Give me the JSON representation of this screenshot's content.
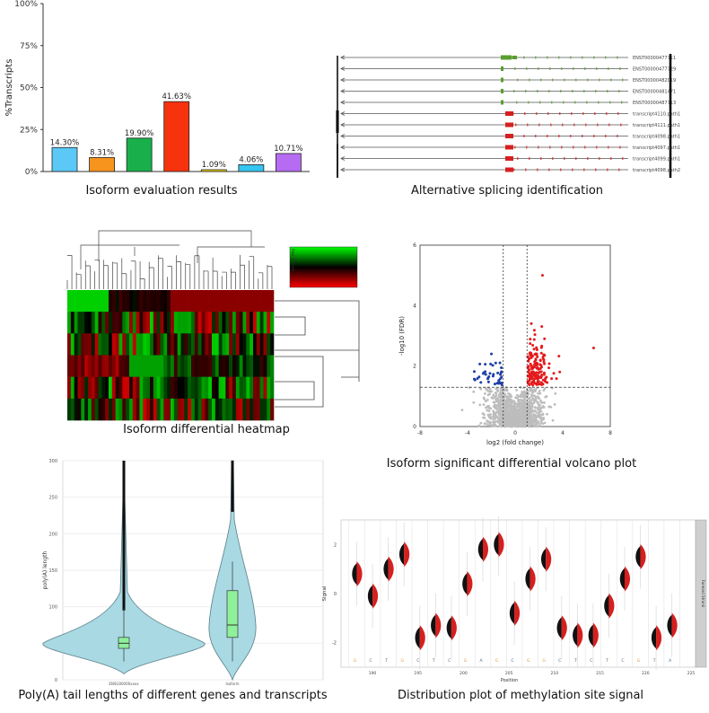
{
  "captions": {
    "p1": "Isoform evaluation results",
    "p2": "Alternative splicing identification",
    "p3": "Isoform differential heatmap",
    "p4": "Isoform significant differential volcano plot",
    "p5": "Poly(A) tail lengths of different genes and transcripts",
    "p6": "Distribution plot of methylation site signal"
  },
  "chart_data": [
    {
      "type": "bar",
      "ylabel": "%Transcripts",
      "ylim": [
        0,
        100
      ],
      "yticks": [
        "0%",
        "25%",
        "50%",
        "75%",
        "100%"
      ],
      "values": [
        14.3,
        8.31,
        19.9,
        41.63,
        1.09,
        4.06,
        10.71
      ],
      "labels": [
        "14.30%",
        "8.31%",
        "19.90%",
        "41.63%",
        "1.09%",
        "4.06%",
        "10.71%"
      ],
      "colors": [
        "#5bc8f5",
        "#f7941d",
        "#19b04b",
        "#f7330e",
        "#f5d90a",
        "#34c6f0",
        "#b66cf2"
      ],
      "grid": false
    },
    {
      "type": "other",
      "kind": "transcript-structure",
      "track_labels": [
        "ENST00000477711",
        "ENST00000477729",
        "ENST00000482019",
        "ENST00000481471",
        "ENST00000487713",
        "transcript4110.path1",
        "transcript4111.path1",
        "transcript4098.path1",
        "transcript4097.path1",
        "transcript4099.path1",
        "transcript4098.path2"
      ],
      "track_colors": [
        "#5a9e2f",
        "#5a9e2f",
        "#5a9e2f",
        "#5a9e2f",
        "#5a9e2f",
        "#d61f1f",
        "#d61f1f",
        "#d61f1f",
        "#d61f1f",
        "#d61f1f",
        "#d61f1f"
      ]
    },
    {
      "type": "heatmap",
      "legend_title": "Row Z-Score",
      "legend_ticks": [
        "-3",
        "-2",
        "-1",
        "0",
        "1",
        "2",
        "3"
      ],
      "rows": 6,
      "palette": [
        "#ff0000",
        "#000000",
        "#00ff00"
      ]
    },
    {
      "type": "scatter",
      "xlabel": "log2 (fold change)",
      "ylabel": "-log10 (FDR)",
      "xlim": [
        -8,
        8
      ],
      "ylim": [
        0,
        6
      ],
      "xticks": [
        "-8",
        "-4",
        "0",
        "4",
        "8"
      ],
      "yticks": [
        "0",
        "2",
        "4",
        "6"
      ],
      "thresholds": {
        "log2fc": [
          -1,
          1
        ],
        "neg_log10_fdr": 1.3
      },
      "colors": {
        "up": "#e31a1c",
        "down": "#1f3fa8",
        "ns": "#bdbdbd"
      }
    },
    {
      "type": "violin",
      "ylabel": "poly(A) length",
      "ylim": [
        0,
        300
      ],
      "yticks": [
        "0",
        "50",
        "100",
        "150",
        "200",
        "250",
        "300"
      ],
      "categories": [
        "ENSG00000xxxx",
        "Isoform"
      ],
      "medians": [
        50,
        75
      ],
      "q1": [
        43,
        58
      ],
      "q3": [
        58,
        122
      ],
      "fill": "#a9d9e3",
      "box_fill": "#8ef09a"
    },
    {
      "type": "violin",
      "xlabel": "Position",
      "ylabel": "Signal",
      "ylim": [
        -3,
        3
      ],
      "yticks": [
        "-2",
        "0",
        "2"
      ],
      "xticks": [
        "190",
        "195",
        "200",
        "205",
        "210",
        "215",
        "220",
        "225"
      ],
      "strip_label": "Forward Strand",
      "signal_means": [
        0.8,
        -0.1,
        1.0,
        1.6,
        -1.8,
        -1.3,
        -1.4,
        0.4,
        1.8,
        2.0,
        -0.8,
        0.6,
        1.4,
        -1.4,
        -1.7,
        -1.7,
        -0.5,
        0.6,
        1.5,
        -1.8,
        -1.3
      ],
      "bases": [
        "G",
        "C",
        "T",
        "G",
        "C",
        "T",
        "C",
        "G",
        "A",
        "G",
        "C",
        "G",
        "G",
        "C",
        "T",
        "C",
        "T",
        "C",
        "G",
        "T",
        "A"
      ]
    }
  ]
}
